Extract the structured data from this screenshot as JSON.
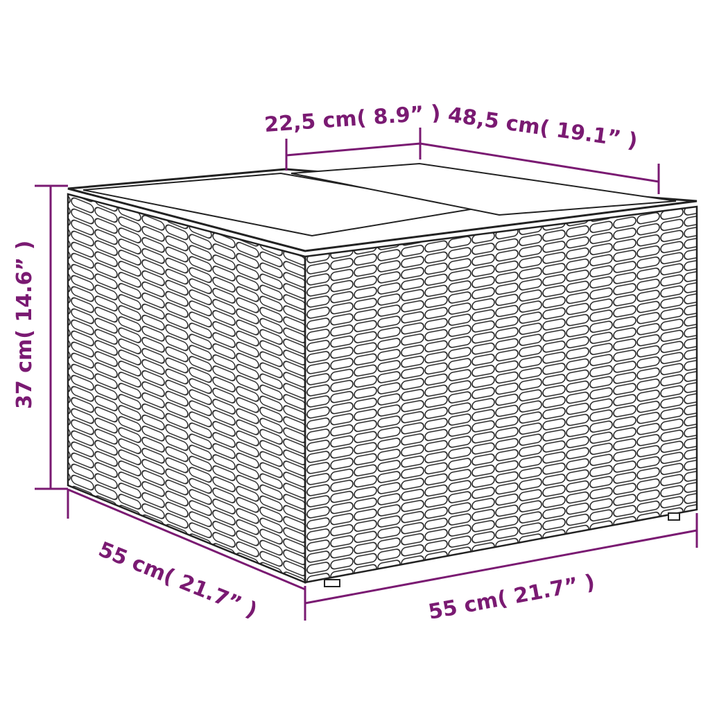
{
  "colors": {
    "dimension": "#7a1a72",
    "outline": "#222222"
  },
  "product": "wicker storage side table",
  "dimensions": {
    "top_left_section": "22,5 cm( 8.9”  )",
    "top_right_section": "48,5 cm( 19.1”  )",
    "height": "37 cm( 14.6”  )",
    "depth": "55 cm( 21.7”  )",
    "width": "55 cm( 21.7”  )"
  }
}
